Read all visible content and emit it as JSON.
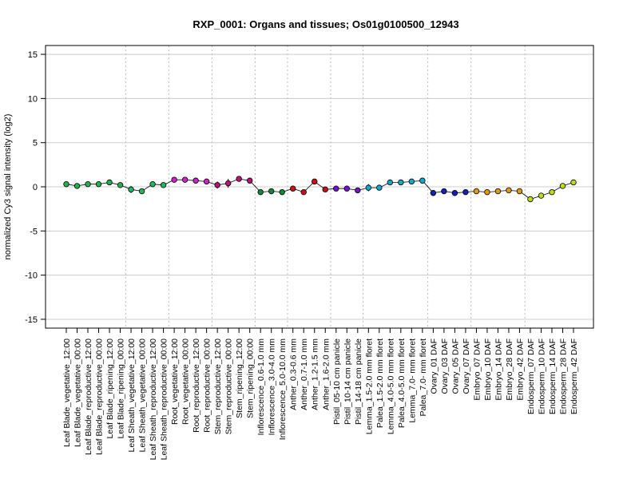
{
  "chart_data": {
    "type": "line",
    "title": "RXP_0001: Organs and tissues; Os01g0100500_12943",
    "ylabel": "normalized Cy3 signal intensity (log2)",
    "xlabel": "",
    "ylim": [
      -16,
      16
    ],
    "yticks": [
      -15,
      -10,
      -5,
      0,
      5,
      10,
      15
    ],
    "grid": true,
    "legend": "none",
    "categories": [
      "Leaf Blade_vegetative_12:00",
      "Leaf Blade_vegetative_00:00",
      "Leaf Blade_reproductive_12:00",
      "Leaf Blade_reproductive_00:00",
      "Leaf Blade_ripening_12:00",
      "Leaf Blade_ripening_00:00",
      "Leaf Sheath_vegetative_12:00",
      "Leaf Sheath_vegetative_00:00",
      "Leaf Sheath_reproductive_12:00",
      "Leaf Sheath_reproductive_00:00",
      "Root_vegetative_12:00",
      "Root_vegetative_00:00",
      "Root_reproductive_12:00",
      "Root_reproductive_00:00",
      "Stem_reproductive_12:00",
      "Stem_reproductive_00:00",
      "Stem_ripening_12:00",
      "Stem_ripening_00:00",
      "Inflorescence_0.6-1.0 mm",
      "Inflorescence_3.0-4.0 mm",
      "Inflorescence_5.0-10.0 mm",
      "Anther_0.3-0.6 mm",
      "Anther_0.7-1.0 mm",
      "Anther_1.2-1.5 mm",
      "Anther_1.6-2.0 mm",
      "Pistil_05-10 cm panicle",
      "Pistil_10-14 cm panicle",
      "Pistil_14-18 cm panicle",
      "Lemma_1.5-2.0 mm floret",
      "Palea_1.5-2.0 mm floret",
      "Lemma_4.0-5.0 mm floret",
      "Palea_4.0-5.0 mm floret",
      "Lemma_7.0- mm floret",
      "Palea_7.0- mm floret",
      "Ovary_01 DAF",
      "Ovary_03 DAF",
      "Ovary_05 DAF",
      "Ovary_07 DAF",
      "Embryo_07 DAF",
      "Embryo_10 DAF",
      "Embryo_14 DAF",
      "Embryo_28 DAF",
      "Embryo_42 DAF",
      "Endosperm_07 DAF",
      "Endosperm_10 DAF",
      "Endosperm_14 DAF",
      "Endosperm_28 DAF",
      "Endosperm_42 DAF"
    ],
    "values": [
      0.3,
      0.1,
      0.3,
      0.3,
      0.5,
      0.2,
      -0.3,
      -0.5,
      0.3,
      0.2,
      0.8,
      0.8,
      0.7,
      0.6,
      0.2,
      0.4,
      0.9,
      0.7,
      -0.6,
      -0.5,
      -0.6,
      -0.2,
      -0.6,
      0.6,
      -0.3,
      -0.2,
      -0.2,
      -0.4,
      -0.1,
      -0.1,
      0.5,
      0.5,
      0.6,
      0.7,
      -0.7,
      -0.5,
      -0.7,
      -0.6,
      -0.5,
      -0.6,
      -0.5,
      -0.4,
      -0.5,
      -1.4,
      -1.0,
      -0.6,
      0.1,
      0.5
    ],
    "errors": [
      0,
      0,
      0,
      0,
      0,
      0,
      0.4,
      0,
      0,
      0,
      0,
      0,
      0,
      0,
      0.4,
      0.5,
      0,
      0,
      0,
      0,
      0,
      0,
      0,
      0,
      0,
      0,
      0,
      0,
      0.4,
      0,
      0.3,
      0,
      0,
      0,
      0.2,
      0,
      0,
      0,
      0,
      0,
      0,
      0,
      0,
      0,
      0,
      0,
      0,
      0
    ],
    "colors": [
      "#22b14c",
      "#22b14c",
      "#22b14c",
      "#22b14c",
      "#22b14c",
      "#22b14c",
      "#1db95a",
      "#1db95a",
      "#1db95a",
      "#1db95a",
      "#cc22cc",
      "#cc22cc",
      "#cc22cc",
      "#cc22cc",
      "#bb1177",
      "#bb1177",
      "#bb1177",
      "#bb1177",
      "#118833",
      "#118833",
      "#118833",
      "#cc1111",
      "#cc1111",
      "#cc1111",
      "#cc1111",
      "#7711cc",
      "#7711cc",
      "#7711cc",
      "#11aacc",
      "#11aacc",
      "#11aacc",
      "#11aacc",
      "#11aacc",
      "#11aacc",
      "#1122bb",
      "#1122bb",
      "#1122bb",
      "#1122bb",
      "#e69a10",
      "#e69a10",
      "#e69a10",
      "#e69a10",
      "#e69a10",
      "#bbdd11",
      "#bbdd11",
      "#bbdd11",
      "#bbdd11",
      "#bbdd11"
    ],
    "group_separators_after": [
      5,
      9,
      13,
      17,
      20,
      24,
      27,
      33,
      37,
      42
    ]
  }
}
